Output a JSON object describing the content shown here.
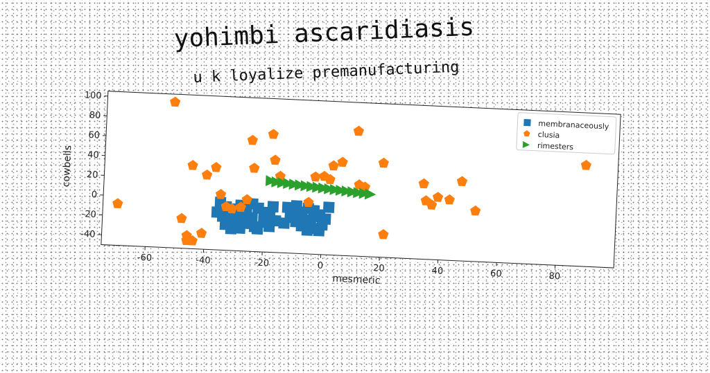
{
  "chart_data": {
    "type": "scatter",
    "title": "yohimbi ascaridiasis",
    "subtitle": "u k loyalize premanufacturing",
    "xlabel": "mesmeric",
    "ylabel": "cowbells",
    "xlim": [
      -75,
      100
    ],
    "ylim": [
      -50,
      105
    ],
    "xticks": [
      -60,
      -40,
      -20,
      0,
      20,
      40,
      60,
      80
    ],
    "yticks": [
      -40,
      -20,
      0,
      20,
      40,
      60,
      80,
      100
    ],
    "grid": false,
    "legend_position": "top-right",
    "series": [
      {
        "name": "membranaceously",
        "marker": "square",
        "color": "#1f77b4",
        "points": [
          [
            -35,
            -2
          ],
          [
            -33,
            -6
          ],
          [
            -31,
            -10
          ],
          [
            -29,
            -14
          ],
          [
            -27,
            -18
          ],
          [
            -25,
            -22
          ],
          [
            -23,
            -25
          ],
          [
            -36,
            -12
          ],
          [
            -34,
            -16
          ],
          [
            -32,
            -20
          ],
          [
            -30,
            -24
          ],
          [
            -28,
            -27
          ],
          [
            -26,
            -12
          ],
          [
            -24,
            -16
          ],
          [
            -22,
            -6
          ],
          [
            -20,
            -10
          ],
          [
            -18,
            -14
          ],
          [
            -20,
            -20
          ],
          [
            -18,
            -24
          ],
          [
            -22,
            -27
          ],
          [
            -17,
            -4
          ],
          [
            -16,
            -18
          ],
          [
            -28,
            -4
          ],
          [
            -26,
            -8
          ],
          [
            -24,
            -2
          ],
          [
            -33,
            -24
          ],
          [
            -31,
            -28
          ],
          [
            -29,
            -8
          ],
          [
            -12,
            -4
          ],
          [
            -10,
            -8
          ],
          [
            -8,
            -12
          ],
          [
            -6,
            -16
          ],
          [
            -4,
            -20
          ],
          [
            -2,
            -24
          ],
          [
            -11,
            -14
          ],
          [
            -9,
            -18
          ],
          [
            -7,
            -22
          ],
          [
            -5,
            -26
          ],
          [
            -3,
            -6
          ],
          [
            -1,
            -10
          ],
          [
            1,
            -14
          ],
          [
            0,
            -20
          ],
          [
            -13,
            -20
          ],
          [
            -9,
            -2
          ],
          [
            -5,
            -4
          ],
          [
            2,
            -2
          ],
          [
            -7,
            -8
          ],
          [
            -3,
            -12
          ],
          [
            -1,
            -26
          ]
        ]
      },
      {
        "name": "clusia",
        "marker": "pentagon",
        "color": "#ff7f0e",
        "points": [
          [
            -52,
            97
          ],
          [
            -70,
            -8
          ],
          [
            -48,
            -20
          ],
          [
            -46,
            -37
          ],
          [
            -46,
            -42
          ],
          [
            -44,
            -42
          ],
          [
            -41,
            -34
          ],
          [
            -45,
            34
          ],
          [
            -40,
            25
          ],
          [
            -37,
            33
          ],
          [
            -35,
            6
          ],
          [
            -33,
            -6
          ],
          [
            -31,
            -8
          ],
          [
            -28,
            -6
          ],
          [
            -26,
            2
          ],
          [
            -25,
            62
          ],
          [
            -24,
            34
          ],
          [
            -18,
            69
          ],
          [
            -17,
            43
          ],
          [
            -15,
            27
          ],
          [
            -5,
            2
          ],
          [
            -3,
            28
          ],
          [
            0,
            29
          ],
          [
            2,
            26
          ],
          [
            3,
            40
          ],
          [
            6,
            44
          ],
          [
            11,
            76
          ],
          [
            12,
            22
          ],
          [
            14,
            20
          ],
          [
            20,
            45
          ],
          [
            21,
            -27
          ],
          [
            34,
            26
          ],
          [
            35,
            9
          ],
          [
            37,
            5
          ],
          [
            39,
            13
          ],
          [
            43,
            11
          ],
          [
            47,
            30
          ],
          [
            52,
            1
          ],
          [
            89,
            52
          ]
        ]
      },
      {
        "name": "rimesters",
        "marker": "triangle-right",
        "color": "#2ca02c",
        "points": [
          [
            -18,
            22
          ],
          [
            -16,
            21
          ],
          [
            -14,
            20.5
          ],
          [
            -12,
            20
          ],
          [
            -10,
            19.5
          ],
          [
            -8,
            19
          ],
          [
            -6,
            18.5
          ],
          [
            -4,
            18
          ],
          [
            -2,
            17.5
          ],
          [
            0,
            17
          ],
          [
            2,
            16.5
          ],
          [
            4,
            16
          ],
          [
            6,
            15.5
          ],
          [
            8,
            15
          ],
          [
            10,
            14.5
          ],
          [
            12,
            14
          ],
          [
            14,
            13.5
          ],
          [
            16,
            13
          ]
        ]
      }
    ]
  }
}
